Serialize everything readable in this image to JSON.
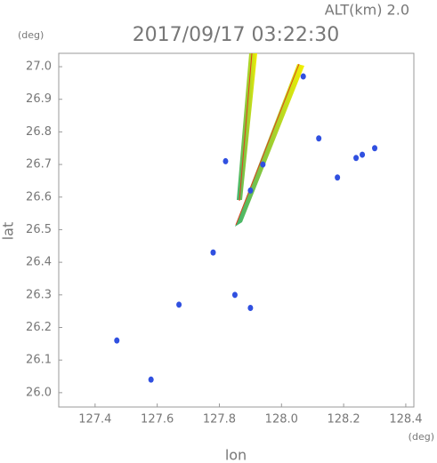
{
  "chart_data": {
    "type": "scatter",
    "title": "2017/09/17 03:22:30",
    "altitude": "ALT(km)  2.0",
    "xlabel": "lon",
    "ylabel": "lat",
    "x_unit": "(deg)",
    "y_unit": "(deg)",
    "xlim": [
      127.283,
      128.426
    ],
    "ylim": [
      25.956,
      27.041
    ],
    "xticks": [
      127.4,
      127.6,
      127.8,
      {
        "value": 128.0,
        "label": "128.0"
      },
      128.2,
      128.4
    ],
    "yticks": [
      {
        "value": 26.0,
        "label": "26.0"
      },
      26.1,
      26.2,
      26.3,
      26.4,
      26.5,
      26.6,
      26.7,
      26.8,
      26.9,
      {
        "value": 27.0,
        "label": "27.0"
      }
    ],
    "x": [
      128.07,
      128.12,
      128.24,
      128.3,
      128.26,
      127.82,
      127.78,
      127.67,
      127.85,
      127.9,
      127.58,
      127.47,
      128.18,
      127.94,
      127.9
    ],
    "y": [
      26.97,
      26.78,
      26.72,
      26.75,
      26.73,
      26.71,
      26.43,
      26.27,
      26.3,
      26.26,
      26.04,
      26.16,
      26.66,
      26.7,
      26.62
    ],
    "color": "#3050e0"
  }
}
